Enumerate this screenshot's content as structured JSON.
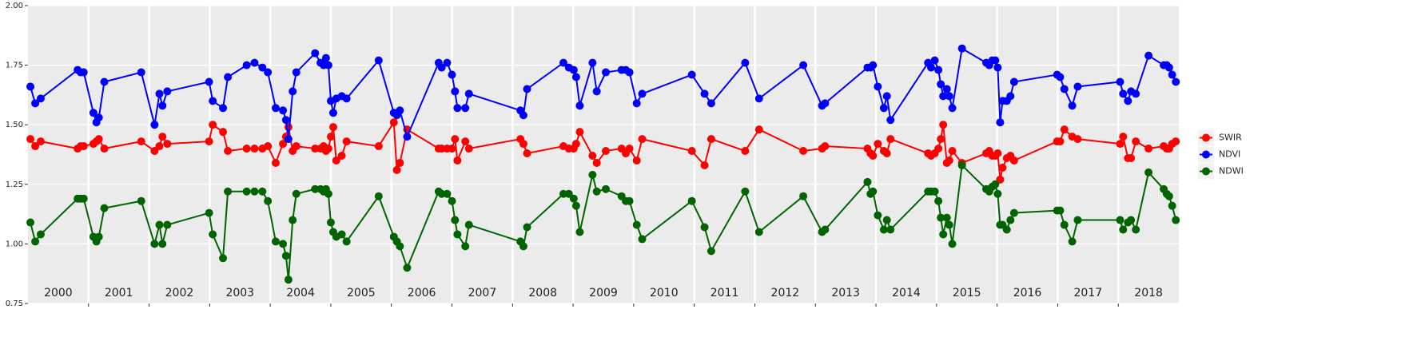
{
  "chart_data": {
    "type": "line",
    "x": [
      2000.04,
      2000.12,
      2000.21,
      2000.82,
      2000.87,
      2000.92,
      2001.08,
      2001.13,
      2001.17,
      2001.26,
      2001.87,
      2002.09,
      2002.17,
      2002.22,
      2002.3,
      2002.99,
      2003.05,
      2003.22,
      2003.3,
      2003.61,
      2003.74,
      2003.87,
      2003.96,
      2004.09,
      2004.21,
      2004.26,
      2004.3,
      2004.37,
      2004.43,
      2004.74,
      2004.83,
      2004.88,
      2004.92,
      2004.96,
      2005.0,
      2005.04,
      2005.09,
      2005.18,
      2005.26,
      2005.79,
      2006.04,
      2006.09,
      2006.14,
      2006.26,
      2006.78,
      2006.83,
      2006.92,
      2007.0,
      2007.05,
      2007.09,
      2007.22,
      2007.28,
      2008.13,
      2008.18,
      2008.24,
      2008.84,
      2008.93,
      2009.01,
      2009.05,
      2009.11,
      2009.32,
      2009.39,
      2009.54,
      2009.8,
      2009.87,
      2009.93,
      2010.05,
      2010.14,
      2010.96,
      2011.17,
      2011.28,
      2011.84,
      2012.07,
      2012.8,
      2013.11,
      2013.16,
      2013.86,
      2013.91,
      2013.95,
      2014.03,
      2014.13,
      2014.18,
      2014.24,
      2014.86,
      2014.91,
      2014.97,
      2015.03,
      2015.07,
      2015.11,
      2015.17,
      2015.21,
      2015.26,
      2015.42,
      2015.82,
      2015.87,
      2015.92,
      2015.97,
      2016.01,
      2016.05,
      2016.09,
      2016.16,
      2016.22,
      2016.28,
      2016.99,
      2017.04,
      2017.11,
      2017.24,
      2017.33,
      2018.03,
      2018.08,
      2018.16,
      2018.21,
      2018.29,
      2018.5,
      2018.75,
      2018.8,
      2018.84,
      2018.89,
      2018.95
    ],
    "series": [
      {
        "name": "SWIR",
        "color": "#ff0000",
        "values": [
          1.44,
          1.41,
          1.43,
          1.4,
          1.41,
          1.41,
          1.42,
          1.43,
          1.44,
          1.4,
          1.43,
          1.39,
          1.41,
          1.45,
          1.42,
          1.43,
          1.5,
          1.47,
          1.39,
          1.4,
          1.4,
          1.4,
          1.41,
          1.34,
          1.42,
          1.45,
          1.49,
          1.39,
          1.41,
          1.4,
          1.4,
          1.41,
          1.39,
          1.4,
          1.45,
          1.49,
          1.35,
          1.37,
          1.43,
          1.41,
          1.51,
          1.31,
          1.34,
          1.48,
          1.4,
          1.4,
          1.4,
          1.4,
          1.44,
          1.35,
          1.43,
          1.4,
          1.44,
          1.42,
          1.38,
          1.41,
          1.4,
          1.4,
          1.42,
          1.47,
          1.37,
          1.34,
          1.39,
          1.4,
          1.38,
          1.4,
          1.35,
          1.44,
          1.39,
          1.33,
          1.44,
          1.39,
          1.48,
          1.39,
          1.4,
          1.41,
          1.4,
          1.38,
          1.37,
          1.42,
          1.39,
          1.38,
          1.44,
          1.38,
          1.37,
          1.38,
          1.4,
          1.44,
          1.5,
          1.34,
          1.35,
          1.39,
          1.34,
          1.38,
          1.39,
          1.37,
          1.37,
          1.38,
          1.27,
          1.32,
          1.36,
          1.37,
          1.35,
          1.43,
          1.43,
          1.48,
          1.45,
          1.44,
          1.42,
          1.45,
          1.36,
          1.36,
          1.43,
          1.4,
          1.41,
          1.4,
          1.4,
          1.42,
          1.43
        ]
      },
      {
        "name": "NDVI",
        "color": "#0000ff",
        "values": [
          1.66,
          1.59,
          1.61,
          1.73,
          1.72,
          1.72,
          1.55,
          1.51,
          1.53,
          1.68,
          1.72,
          1.5,
          1.63,
          1.58,
          1.64,
          1.68,
          1.6,
          1.57,
          1.7,
          1.75,
          1.76,
          1.74,
          1.72,
          1.57,
          1.56,
          1.52,
          1.44,
          1.64,
          1.72,
          1.8,
          1.76,
          1.75,
          1.78,
          1.75,
          1.6,
          1.55,
          1.61,
          1.62,
          1.61,
          1.77,
          1.55,
          1.54,
          1.56,
          1.45,
          1.76,
          1.74,
          1.76,
          1.71,
          1.64,
          1.57,
          1.57,
          1.63,
          1.56,
          1.54,
          1.65,
          1.76,
          1.74,
          1.73,
          1.7,
          1.58,
          1.76,
          1.64,
          1.72,
          1.73,
          1.73,
          1.72,
          1.59,
          1.63,
          1.71,
          1.63,
          1.59,
          1.76,
          1.61,
          1.75,
          1.58,
          1.59,
          1.74,
          1.74,
          1.75,
          1.66,
          1.57,
          1.62,
          1.52,
          1.76,
          1.74,
          1.77,
          1.73,
          1.67,
          1.62,
          1.65,
          1.62,
          1.57,
          1.82,
          1.76,
          1.75,
          1.77,
          1.77,
          1.74,
          1.51,
          1.6,
          1.6,
          1.62,
          1.68,
          1.71,
          1.7,
          1.65,
          1.58,
          1.66,
          1.68,
          1.63,
          1.6,
          1.64,
          1.63,
          1.79,
          1.75,
          1.75,
          1.74,
          1.71,
          1.68
        ]
      },
      {
        "name": "NDWI",
        "color": "#006400",
        "values": [
          1.09,
          1.01,
          1.04,
          1.19,
          1.19,
          1.19,
          1.03,
          1.01,
          1.03,
          1.15,
          1.18,
          1.0,
          1.08,
          1.0,
          1.08,
          1.13,
          1.04,
          0.94,
          1.22,
          1.22,
          1.22,
          1.22,
          1.18,
          1.01,
          1.0,
          0.95,
          0.85,
          1.1,
          1.21,
          1.23,
          1.23,
          1.22,
          1.23,
          1.21,
          1.09,
          1.05,
          1.03,
          1.04,
          1.01,
          1.2,
          1.03,
          1.01,
          0.99,
          0.9,
          1.22,
          1.21,
          1.21,
          1.18,
          1.1,
          1.04,
          0.99,
          1.08,
          1.01,
          0.99,
          1.07,
          1.21,
          1.21,
          1.19,
          1.16,
          1.05,
          1.29,
          1.22,
          1.23,
          1.2,
          1.18,
          1.18,
          1.08,
          1.02,
          1.18,
          1.07,
          0.97,
          1.22,
          1.05,
          1.2,
          1.05,
          1.06,
          1.26,
          1.21,
          1.22,
          1.12,
          1.06,
          1.1,
          1.06,
          1.22,
          1.22,
          1.22,
          1.18,
          1.11,
          1.04,
          1.11,
          1.08,
          1.0,
          1.33,
          1.23,
          1.22,
          1.24,
          1.25,
          1.21,
          1.08,
          1.08,
          1.06,
          1.1,
          1.13,
          1.14,
          1.14,
          1.08,
          1.01,
          1.1,
          1.1,
          1.06,
          1.09,
          1.1,
          1.06,
          1.3,
          1.23,
          1.21,
          1.2,
          1.16,
          1.1
        ]
      }
    ],
    "xlim": [
      2000,
      2019
    ],
    "xticks": [
      {
        "value": 2000.5,
        "label": "2000"
      },
      {
        "value": 2001.5,
        "label": "2001"
      },
      {
        "value": 2002.5,
        "label": "2002"
      },
      {
        "value": 2003.5,
        "label": "2003"
      },
      {
        "value": 2004.5,
        "label": "2004"
      },
      {
        "value": 2005.5,
        "label": "2005"
      },
      {
        "value": 2006.5,
        "label": "2006"
      },
      {
        "value": 2007.5,
        "label": "2007"
      },
      {
        "value": 2008.5,
        "label": "2008"
      },
      {
        "value": 2009.5,
        "label": "2009"
      },
      {
        "value": 2010.5,
        "label": "2010"
      },
      {
        "value": 2011.5,
        "label": "2011"
      },
      {
        "value": 2012.5,
        "label": "2012"
      },
      {
        "value": 2013.5,
        "label": "2013"
      },
      {
        "value": 2014.5,
        "label": "2014"
      },
      {
        "value": 2015.5,
        "label": "2015"
      },
      {
        "value": 2016.5,
        "label": "2016"
      },
      {
        "value": 2017.5,
        "label": "2017"
      },
      {
        "value": 2018.5,
        "label": "2018"
      }
    ],
    "xgrid": [
      2001,
      2002,
      2003,
      2004,
      2005,
      2006,
      2007,
      2008,
      2009,
      2010,
      2011,
      2012,
      2013,
      2014,
      2015,
      2016,
      2017,
      2018
    ],
    "ylim": [
      0.75,
      2.0
    ],
    "yticks": [
      0.75,
      {
        "value": 1,
        "label": "1.00"
      },
      1.25,
      {
        "value": 1.5,
        "label": "1.50"
      },
      1.75,
      {
        "value": 2,
        "label": "2.00"
      }
    ],
    "grid": true,
    "legend": "right"
  }
}
